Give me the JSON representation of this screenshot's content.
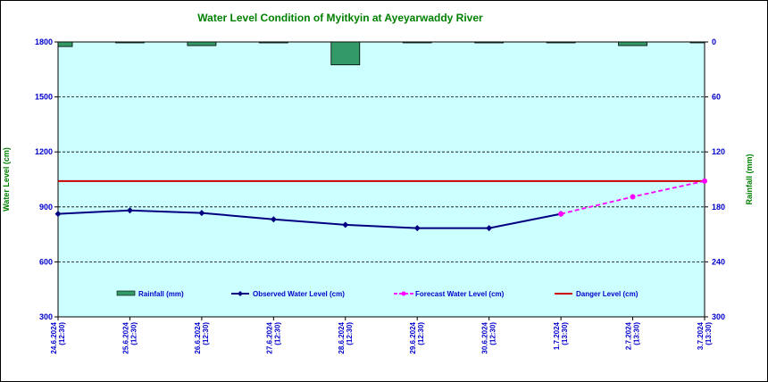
{
  "chart_data": {
    "type": "line",
    "title": "Water Level Condition of Myitkyin at Ayeyarwaddy River",
    "ylabel": "Water Level (cm)",
    "y2label": "Rainfall (mm)",
    "ylim": [
      300,
      1800
    ],
    "y2lim": [
      0,
      300
    ],
    "yticks": [
      "1800",
      "1500",
      "1200",
      "900",
      "600",
      "300"
    ],
    "y2ticks": [
      "0",
      "60",
      "120",
      "180",
      "240",
      "300"
    ],
    "categories": [
      [
        "24.6.2024",
        "(12:30)"
      ],
      [
        "25.6.2024",
        "(12:30)"
      ],
      [
        "26.6.2024",
        "(12:30)"
      ],
      [
        "27.6.2024",
        "(12:30)"
      ],
      [
        "28.6.2024",
        "(12:30)"
      ],
      [
        "29.6.2024",
        "(12:30)"
      ],
      [
        "30.6.2024",
        "(12:30)"
      ],
      [
        "1.7.2024",
        "(13:30)"
      ],
      [
        "2.7.2024",
        "(13:30)"
      ],
      [
        "3.7.2024",
        "(13:30)"
      ]
    ],
    "series": [
      {
        "name": "Rainfall (mm)",
        "kind": "bar",
        "axis": "right",
        "color": "#339966",
        "values": [
          5,
          0,
          4,
          1,
          25,
          0,
          1,
          0,
          4,
          0
        ]
      },
      {
        "name": "Observed Water Level (cm)",
        "kind": "line",
        "axis": "left",
        "color": "#000080",
        "values": [
          862,
          881,
          867,
          832,
          802,
          784,
          784,
          862,
          null,
          null
        ]
      },
      {
        "name": "Forecast Water Level (cm)",
        "kind": "dashed-line",
        "axis": "left",
        "color": "#ff00ff",
        "values": [
          null,
          null,
          null,
          null,
          null,
          null,
          null,
          862,
          955,
          1041
        ]
      },
      {
        "name": "Danger Level (cm)",
        "kind": "hline",
        "axis": "left",
        "color": "#cc0000",
        "value": 1041
      }
    ],
    "grid": true,
    "legend": "bottom-inside",
    "colors": {
      "plot_bg": "#ccffff",
      "axis_text": "#0000cc",
      "title": "#008000"
    }
  }
}
